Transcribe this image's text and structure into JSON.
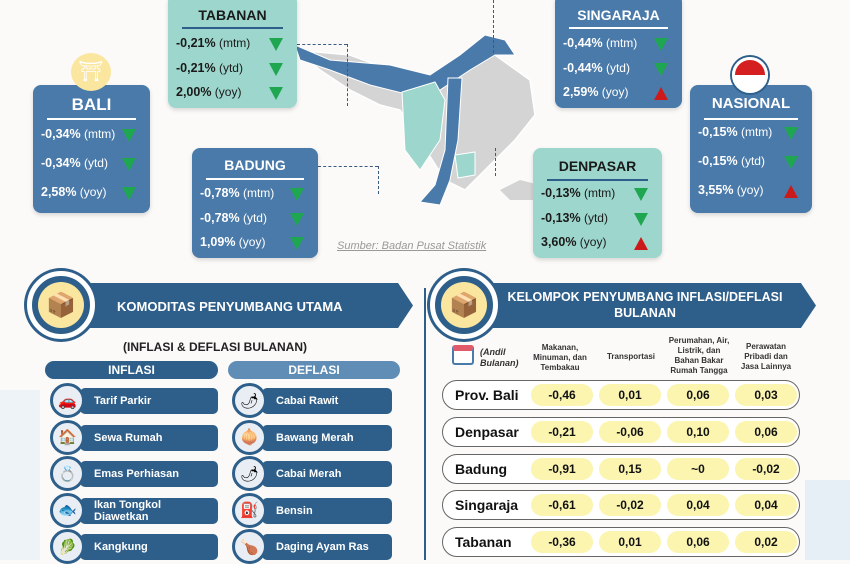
{
  "source": "Sumber: Badan Pusat Statistik",
  "regions": {
    "bali": {
      "name": "BALI",
      "rows": [
        {
          "v": "-0,34%",
          "u": "(mtm)",
          "dir": "down"
        },
        {
          "v": "-0,34%",
          "u": "(ytd)",
          "dir": "down"
        },
        {
          "v": "2,58%",
          "u": "(yoy)",
          "dir": "down"
        }
      ]
    },
    "tabanan": {
      "name": "TABANAN",
      "rows": [
        {
          "v": "-0,21%",
          "u": "(mtm)",
          "dir": "down"
        },
        {
          "v": "-0,21%",
          "u": "(ytd)",
          "dir": "down"
        },
        {
          "v": "2,00%",
          "u": "(yoy)",
          "dir": "down"
        }
      ]
    },
    "badung": {
      "name": "BADUNG",
      "rows": [
        {
          "v": "-0,78%",
          "u": "(mtm)",
          "dir": "down"
        },
        {
          "v": "-0,78%",
          "u": "(ytd)",
          "dir": "down"
        },
        {
          "v": "1,09%",
          "u": "(yoy)",
          "dir": "down"
        }
      ]
    },
    "singaraja": {
      "name": "SINGARAJA",
      "rows": [
        {
          "v": "-0,44%",
          "u": "(mtm)",
          "dir": "down"
        },
        {
          "v": "-0,44%",
          "u": "(ytd)",
          "dir": "down"
        },
        {
          "v": "2,59%",
          "u": "(yoy)",
          "dir": "up"
        }
      ]
    },
    "denpasar": {
      "name": "DENPASAR",
      "rows": [
        {
          "v": "-0,13%",
          "u": "(mtm)",
          "dir": "down"
        },
        {
          "v": "-0,13%",
          "u": "(ytd)",
          "dir": "down"
        },
        {
          "v": "3,60%",
          "u": "(yoy)",
          "dir": "up"
        }
      ]
    },
    "nasional": {
      "name": "NASIONAL",
      "rows": [
        {
          "v": "-0,15%",
          "u": "(mtm)",
          "dir": "down"
        },
        {
          "v": "-0,15%",
          "u": "(ytd)",
          "dir": "down"
        },
        {
          "v": "3,55%",
          "u": "(yoy)",
          "dir": "up"
        }
      ]
    }
  },
  "komoditas": {
    "title": "KOMODITAS PENYUMBANG UTAMA",
    "subtitle": "(INFLASI & DEFLASI BULANAN)",
    "inflasi_label": "INFLASI",
    "deflasi_label": "DEFLASI",
    "inflasi": [
      {
        "label": "Tarif Parkir",
        "icon": "🚗"
      },
      {
        "label": "Sewa Rumah",
        "icon": "🏠"
      },
      {
        "label": "Emas Perhiasan",
        "icon": "💍"
      },
      {
        "label": "Ikan Tongkol Diawetkan",
        "icon": "🐟"
      },
      {
        "label": "Kangkung",
        "icon": "🥬"
      }
    ],
    "deflasi": [
      {
        "label": "Cabai Rawit",
        "icon": "🌶"
      },
      {
        "label": "Bawang Merah",
        "icon": "🧅"
      },
      {
        "label": "Cabai Merah",
        "icon": "🌶"
      },
      {
        "label": "Bensin",
        "icon": "⛽"
      },
      {
        "label": "Daging Ayam Ras",
        "icon": "🍗"
      }
    ]
  },
  "kelompok": {
    "title": "KELOMPOK PENYUMBANG INFLASI/DEFLASI BULANAN",
    "andil": "(Andil Bulanan)",
    "columns": [
      "Makanan, Minuman, dan Tembakau",
      "Transportasi",
      "Perumahan, Air, Listrik, dan Bahan Bakar Rumah Tangga",
      "Perawatan Pribadi dan Jasa Lainnya"
    ],
    "rows": [
      {
        "name": "Prov. Bali",
        "values": [
          "-0,46",
          "0,01",
          "0,06",
          "0,03"
        ]
      },
      {
        "name": "Denpasar",
        "values": [
          "-0,21",
          "-0,06",
          "0,10",
          "0,06"
        ]
      },
      {
        "name": "Badung",
        "values": [
          "-0,91",
          "0,15",
          "~0",
          "-0,02"
        ]
      },
      {
        "name": "Singaraja",
        "values": [
          "-0,61",
          "-0,02",
          "0,04",
          "0,04"
        ]
      },
      {
        "name": "Tabanan",
        "values": [
          "-0,36",
          "0,01",
          "0,06",
          "0,02"
        ]
      }
    ]
  },
  "colors": {
    "dark_blue": "#2e5f8a",
    "blue": "#4a7aaa",
    "teal": "#9dd6cc",
    "down": "#1fa650",
    "up": "#cc1a1a",
    "cell": "#fbf5b0"
  }
}
